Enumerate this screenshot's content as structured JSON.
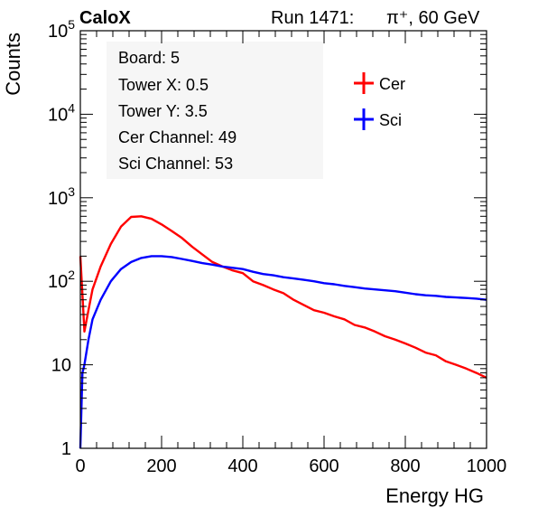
{
  "header": {
    "experiment": "CaloX",
    "run": "Run 1471:",
    "particle": "π⁺, 60 GeV"
  },
  "info_box": [
    "Board: 5",
    "Tower X: 0.5",
    "Tower Y: 3.5",
    "Cer Channel: 49",
    "Sci Channel: 53"
  ],
  "chart_data": {
    "type": "line",
    "xlabel": "Energy HG",
    "ylabel": "Counts",
    "xlim": [
      0,
      1000
    ],
    "ylim": [
      1,
      100000
    ],
    "yscale": "log",
    "grid": false,
    "legend_position": "top-right",
    "x_ticks": [
      "0",
      "200",
      "400",
      "600",
      "800",
      "1000"
    ],
    "y_ticks": [
      {
        "value": 1,
        "base": "1",
        "exp": ""
      },
      {
        "value": 10,
        "base": "10",
        "exp": ""
      },
      {
        "value": 100,
        "base": "10",
        "exp": "2"
      },
      {
        "value": 1000,
        "base": "10",
        "exp": "3"
      },
      {
        "value": 10000,
        "base": "10",
        "exp": "4"
      },
      {
        "value": 100000,
        "base": "10",
        "exp": "5"
      }
    ],
    "series": [
      {
        "name": "Cer",
        "color": "#ff0000",
        "x": [
          0,
          5,
          10,
          20,
          30,
          50,
          75,
          100,
          125,
          150,
          175,
          200,
          225,
          250,
          275,
          300,
          325,
          350,
          375,
          400,
          425,
          450,
          475,
          500,
          525,
          550,
          575,
          600,
          625,
          650,
          675,
          700,
          725,
          750,
          775,
          800,
          825,
          850,
          875,
          900,
          925,
          950,
          975,
          1000
        ],
        "values": [
          200,
          70,
          25,
          45,
          80,
          150,
          280,
          450,
          590,
          600,
          560,
          480,
          400,
          330,
          260,
          210,
          170,
          150,
          135,
          125,
          100,
          90,
          80,
          72,
          60,
          52,
          45,
          42,
          38,
          35,
          30,
          28,
          25,
          22,
          20,
          18,
          16,
          14,
          13,
          11,
          10,
          9,
          8,
          7
        ]
      },
      {
        "name": "Sci",
        "color": "#0000ff",
        "x": [
          0,
          5,
          10,
          20,
          30,
          50,
          75,
          100,
          125,
          150,
          175,
          200,
          225,
          250,
          275,
          300,
          325,
          350,
          375,
          400,
          425,
          450,
          475,
          500,
          525,
          550,
          575,
          600,
          625,
          650,
          675,
          700,
          725,
          750,
          775,
          800,
          825,
          850,
          875,
          900,
          925,
          950,
          975,
          1000
        ],
        "values": [
          1,
          8,
          10,
          20,
          35,
          60,
          100,
          140,
          170,
          190,
          200,
          200,
          195,
          185,
          175,
          165,
          158,
          150,
          145,
          140,
          130,
          122,
          118,
          112,
          108,
          104,
          100,
          95,
          92,
          88,
          85,
          82,
          80,
          78,
          76,
          73,
          70,
          68,
          67,
          65,
          64,
          63,
          62,
          60
        ]
      }
    ]
  }
}
